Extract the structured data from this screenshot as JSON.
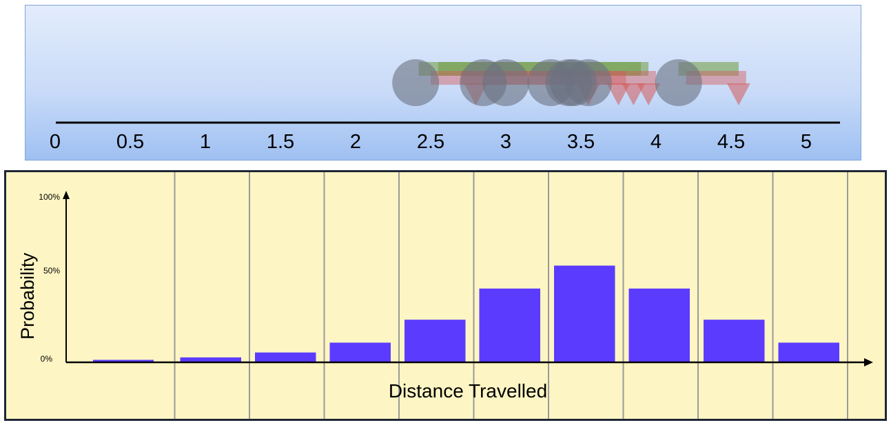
{
  "number_line": {
    "ticks": [
      "0",
      "0.5",
      "1",
      "1.5",
      "2",
      "2.5",
      "3",
      "3.5",
      "4",
      "4.5",
      "5"
    ],
    "range": [
      0,
      5
    ],
    "circles": [
      2.4,
      2.85,
      3.0,
      3.3,
      3.42,
      3.45,
      3.55,
      4.15
    ],
    "green_bars": [
      [
        2.42,
        3.9
      ],
      [
        2.55,
        3.95
      ],
      [
        4.15,
        4.55
      ]
    ],
    "red_bars": [
      [
        2.5,
        3.8
      ],
      [
        2.7,
        4.0
      ],
      [
        4.2,
        4.6
      ]
    ],
    "triangles": [
      2.8,
      3.55,
      3.75,
      3.85,
      3.95,
      4.55
    ],
    "colors": {
      "circle": "#6b7180",
      "green": "#6f9a3e",
      "red": "#d45a5a"
    }
  },
  "chart_data": {
    "type": "bar",
    "xlabel": "Distance Travelled",
    "ylabel": "Probability",
    "ytick_labels": [
      "100%",
      "50%",
      "0%"
    ],
    "ylim": [
      0,
      100
    ],
    "values": [
      1.5,
      3,
      6,
      12,
      26,
      45,
      59,
      45,
      26,
      12
    ],
    "grid": true,
    "colors": {
      "bar": "#5b3cff",
      "background": "#fdf5c3",
      "grid": "#9a9a9a"
    }
  }
}
